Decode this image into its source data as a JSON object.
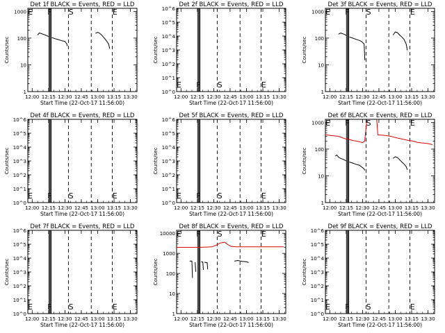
{
  "colors": {
    "events": "#000000",
    "lld": "#dd0000",
    "axis": "#000000"
  },
  "xticks": [
    "12:00",
    "12:15",
    "12:30",
    "12:45",
    "13:00",
    "13:15",
    "13:30"
  ],
  "xlabel": "Start Time (22-Oct-17 11:56:00)",
  "ylabel": "Counts/sec",
  "chart_data": [
    {
      "type": "line",
      "title": "Det 1f BLACK = Events, RED = LLD",
      "x_range_minutes": [
        0,
        100
      ],
      "y_scale": "log",
      "ytick_values": [
        1,
        10,
        100,
        1000
      ],
      "ytick_labels": [
        "1",
        "10",
        "100",
        "1000"
      ],
      "ylim": [
        1,
        1300
      ],
      "solid_lines_min": [
        19.3,
        20.2,
        21.0,
        21.4
      ],
      "dashed_lines_min": [
        37.2,
        58.1,
        77.4
      ],
      "markers": [
        {
          "label": "E",
          "x": 2.2
        },
        {
          "label": "F",
          "x": 20.0
        },
        {
          "label": "S",
          "x": 39.6
        },
        {
          "label": "E",
          "x": 79.8
        }
      ],
      "series": [
        {
          "color": "black",
          "points": [
            [
              9.0,
              130
            ],
            [
              10.5,
              155
            ],
            [
              12.0,
              150
            ],
            [
              14.0,
              140
            ],
            [
              16.0,
              130
            ],
            [
              18.0,
              120
            ],
            [
              19.0,
              115
            ]
          ]
        },
        {
          "color": "black",
          "points": [
            [
              22.0,
              105
            ],
            [
              25.0,
              95
            ],
            [
              28.0,
              88
            ],
            [
              31.0,
              80
            ],
            [
              34.0,
              75
            ],
            [
              35.8,
              60
            ],
            [
              36.1,
              50
            ]
          ]
        },
        {
          "color": "black",
          "points": [
            [
              62.0,
              150
            ],
            [
              64.0,
              165
            ],
            [
              66.0,
              150
            ],
            [
              68.0,
              125
            ],
            [
              70.0,
              100
            ],
            [
              72.0,
              80
            ],
            [
              74.0,
              60
            ],
            [
              75.0,
              40
            ]
          ]
        }
      ]
    },
    {
      "type": "line",
      "title": "Det 2f BLACK = Events, RED = LLD",
      "x_range_minutes": [
        0,
        100
      ],
      "y_scale": "log",
      "ytick_values": [
        1,
        10,
        100,
        1000,
        10000,
        100000,
        1000000
      ],
      "ytick_labels": [
        "10^0",
        "10^1",
        "10^2",
        "10^3",
        "10^4",
        "10^5",
        "10^6"
      ],
      "ylim": [
        1,
        1000000
      ],
      "solid_lines_min": [
        19.3,
        20.2,
        21.0,
        21.4
      ],
      "dashed_lines_min": [
        37.2,
        58.1,
        77.4
      ],
      "markers": [
        {
          "label": "E",
          "x": 2.2
        },
        {
          "label": "F",
          "x": 20.0
        },
        {
          "label": "S",
          "x": 39.6
        },
        {
          "label": "E",
          "x": 79.8
        }
      ],
      "series": []
    },
    {
      "type": "line",
      "title": "Det 3f BLACK = Events, RED = LLD",
      "x_range_minutes": [
        0,
        100
      ],
      "y_scale": "log",
      "ytick_values": [
        1,
        10,
        100,
        1000
      ],
      "ytick_labels": [
        "1",
        "10",
        "100",
        "1000"
      ],
      "ylim": [
        1,
        1300
      ],
      "solid_lines_min": [
        19.3,
        20.2,
        21.0,
        21.4
      ],
      "dashed_lines_min": [
        37.2,
        58.1,
        77.4
      ],
      "markers": [
        {
          "label": "E",
          "x": 2.2
        },
        {
          "label": "F",
          "x": 20.0
        },
        {
          "label": "S",
          "x": 39.6
        },
        {
          "label": "E",
          "x": 79.8
        }
      ],
      "series": [
        {
          "color": "black",
          "points": [
            [
              12.0,
              140
            ],
            [
              14.0,
              155
            ],
            [
              16.0,
              145
            ],
            [
              18.0,
              135
            ],
            [
              19.0,
              125
            ]
          ]
        },
        {
          "color": "black",
          "points": [
            [
              22.0,
              110
            ],
            [
              25.0,
              100
            ],
            [
              28.0,
              90
            ],
            [
              31.0,
              82
            ],
            [
              33.0,
              75
            ],
            [
              35.5,
              60
            ],
            [
              36.1,
              15
            ]
          ]
        },
        {
          "color": "black",
          "points": [
            [
              62.0,
              130
            ],
            [
              64.0,
              170
            ],
            [
              66.0,
              160
            ],
            [
              68.0,
              130
            ],
            [
              70.0,
              110
            ],
            [
              72.0,
              90
            ],
            [
              74.0,
              60
            ],
            [
              75.0,
              35
            ]
          ]
        }
      ]
    },
    {
      "type": "line",
      "title": "Det 4f BLACK = Events, RED = LLD",
      "x_range_minutes": [
        0,
        100
      ],
      "y_scale": "log",
      "ytick_values": [
        1,
        10,
        100,
        1000,
        10000,
        100000,
        1000000
      ],
      "ytick_labels": [
        "10^0",
        "10^1",
        "10^2",
        "10^3",
        "10^4",
        "10^5",
        "10^6"
      ],
      "ylim": [
        1,
        1000000
      ],
      "solid_lines_min": [
        19.3,
        20.2,
        21.0,
        21.4
      ],
      "dashed_lines_min": [
        37.2,
        58.1,
        77.4
      ],
      "markers": [
        {
          "label": "E",
          "x": 2.2
        },
        {
          "label": "F",
          "x": 20.0
        },
        {
          "label": "S",
          "x": 39.6
        },
        {
          "label": "E",
          "x": 79.8
        }
      ],
      "series": []
    },
    {
      "type": "line",
      "title": "Det 5f BLACK = Events, RED = LLD",
      "x_range_minutes": [
        0,
        100
      ],
      "y_scale": "log",
      "ytick_values": [
        1,
        10,
        100,
        1000,
        10000,
        100000,
        1000000
      ],
      "ytick_labels": [
        "10^0",
        "10^1",
        "10^2",
        "10^3",
        "10^4",
        "10^5",
        "10^6"
      ],
      "ylim": [
        1,
        1000000
      ],
      "solid_lines_min": [
        19.3,
        20.2,
        21.0,
        21.4
      ],
      "dashed_lines_min": [
        37.2,
        58.1,
        77.4
      ],
      "markers": [
        {
          "label": "E",
          "x": 2.2
        },
        {
          "label": "F",
          "x": 20.0
        },
        {
          "label": "S",
          "x": 39.6
        },
        {
          "label": "E",
          "x": 79.8
        }
      ],
      "series": []
    },
    {
      "type": "line",
      "title": "Det 6f BLACK = Events, RED = LLD",
      "x_range_minutes": [
        0,
        100
      ],
      "y_scale": "log",
      "ytick_values": [
        1,
        10,
        100,
        1000
      ],
      "ytick_labels": [
        "1",
        "10",
        "100",
        "1000"
      ],
      "ylim": [
        1,
        1300
      ],
      "solid_lines_min": [
        19.3,
        20.2,
        21.0,
        21.4
      ],
      "dashed_lines_min": [
        37.2,
        58.1,
        77.4
      ],
      "markers": [
        {
          "label": "E",
          "x": 2.2
        },
        {
          "label": "F",
          "x": 20.0
        },
        {
          "label": "S",
          "x": 39.6
        },
        {
          "label": "E",
          "x": 79.8
        }
      ],
      "series": [
        {
          "color": "red",
          "points": [
            [
              0.0,
              340
            ],
            [
              6.0,
              320
            ],
            [
              12.0,
              300
            ],
            [
              16.0,
              260
            ],
            [
              19.0,
              240
            ],
            [
              21.5,
              230
            ],
            [
              25.0,
              210
            ],
            [
              28.0,
              200
            ],
            [
              31.0,
              190
            ],
            [
              34.0,
              175
            ],
            [
              36.0,
              200
            ],
            [
              38.0,
              1300
            ]
          ]
        },
        {
          "color": "red",
          "points": [
            [
              47.0,
              1300
            ],
            [
              48.0,
              340
            ],
            [
              52.0,
              330
            ],
            [
              56.0,
              320
            ],
            [
              60.0,
              300
            ],
            [
              64.0,
              270
            ],
            [
              68.0,
              250
            ],
            [
              72.0,
              230
            ],
            [
              76.0,
              210
            ],
            [
              80.0,
              200
            ],
            [
              84.0,
              180
            ],
            [
              88.0,
              170
            ],
            [
              92.0,
              165
            ],
            [
              96.0,
              155
            ],
            [
              98.0,
              145
            ]
          ]
        },
        {
          "color": "black",
          "points": [
            [
              9.0,
              55
            ],
            [
              10.5,
              60
            ],
            [
              12.0,
              50
            ],
            [
              14.0,
              45
            ],
            [
              16.0,
              42
            ],
            [
              18.0,
              38
            ],
            [
              19.0,
              36
            ]
          ]
        },
        {
          "color": "black",
          "points": [
            [
              22.0,
              33
            ],
            [
              25.0,
              30
            ],
            [
              28.0,
              27
            ],
            [
              31.0,
              25
            ],
            [
              33.0,
              22
            ],
            [
              35.5,
              18
            ],
            [
              36.1,
              16
            ]
          ]
        },
        {
          "color": "black",
          "points": [
            [
              62.0,
              45
            ],
            [
              64.0,
              52
            ],
            [
              66.0,
              48
            ],
            [
              68.0,
              40
            ],
            [
              70.0,
              33
            ],
            [
              72.0,
              28
            ],
            [
              74.0,
              22
            ],
            [
              75.0,
              17
            ]
          ]
        }
      ]
    },
    {
      "type": "line",
      "title": "Det 7f BLACK = Events, RED = LLD",
      "x_range_minutes": [
        0,
        100
      ],
      "y_scale": "log",
      "ytick_values": [
        1,
        10,
        100,
        1000,
        10000,
        100000,
        1000000
      ],
      "ytick_labels": [
        "10^0",
        "10^1",
        "10^2",
        "10^3",
        "10^4",
        "10^5",
        "10^6"
      ],
      "ylim": [
        1,
        1000000
      ],
      "solid_lines_min": [
        19.3,
        20.2,
        21.0,
        21.4
      ],
      "dashed_lines_min": [
        37.2,
        58.1,
        77.4
      ],
      "markers": [
        {
          "label": "E",
          "x": 2.2
        },
        {
          "label": "F",
          "x": 20.0
        },
        {
          "label": "S",
          "x": 39.6
        },
        {
          "label": "E",
          "x": 79.8
        }
      ],
      "series": []
    },
    {
      "type": "line",
      "title": "Det 8f BLACK = Events, RED = LLD",
      "x_range_minutes": [
        0,
        100
      ],
      "y_scale": "log",
      "ytick_values": [
        1,
        10,
        100,
        1000,
        10000
      ],
      "ytick_labels": [
        "1",
        "10",
        "100",
        "1000",
        "10000"
      ],
      "ylim": [
        1,
        14000
      ],
      "solid_lines_min": [
        19.3,
        20.2,
        21.0,
        21.4
      ],
      "dashed_lines_min": [
        37.2,
        58.1,
        77.4
      ],
      "markers": [
        {
          "label": "E",
          "x": 2.2
        },
        {
          "label": "F",
          "x": 20.0
        },
        {
          "label": "S",
          "x": 39.6
        },
        {
          "label": "E",
          "x": 79.8
        }
      ],
      "series": [
        {
          "color": "red",
          "points": [
            [
              0.0,
              2000
            ],
            [
              10.0,
              2000
            ],
            [
              20.0,
              2000
            ],
            [
              28.0,
              2050
            ],
            [
              32.0,
              2100
            ],
            [
              36.0,
              2500
            ],
            [
              40.0,
              3300
            ],
            [
              44.0,
              3600
            ],
            [
              47.0,
              2700
            ],
            [
              50.0,
              2200
            ],
            [
              55.0,
              2100
            ],
            [
              65.0,
              2100
            ],
            [
              75.0,
              2100
            ],
            [
              85.0,
              2100
            ],
            [
              98.0,
              2100
            ]
          ]
        },
        {
          "color": "black",
          "points": [
            [
              12.0,
              400
            ],
            [
              13.0,
              420
            ],
            [
              14.0,
              410
            ],
            [
              14.5,
              60
            ]
          ]
        },
        {
          "color": "black",
          "points": [
            [
              17.0,
              360
            ],
            [
              17.5,
              120
            ]
          ]
        },
        {
          "color": "black",
          "points": [
            [
              22.5,
              380
            ],
            [
              24.0,
              370
            ],
            [
              24.5,
              150
            ]
          ]
        },
        {
          "color": "black",
          "points": [
            [
              25.5,
              360
            ],
            [
              27.0,
              350
            ],
            [
              28.0,
              340
            ],
            [
              28.5,
              160
            ]
          ]
        },
        {
          "color": "black",
          "points": [
            [
              53.0,
              410
            ],
            [
              56.0,
              440
            ],
            [
              60.0,
              400
            ],
            [
              64.0,
              380
            ],
            [
              66.0,
              350
            ]
          ]
        }
      ]
    },
    {
      "type": "line",
      "title": "Det 9f BLACK = Events, RED = LLD",
      "x_range_minutes": [
        0,
        100
      ],
      "y_scale": "log",
      "ytick_values": [
        1,
        10,
        100,
        1000,
        10000,
        100000,
        1000000
      ],
      "ytick_labels": [
        "10^0",
        "10^1",
        "10^2",
        "10^3",
        "10^4",
        "10^5",
        "10^6"
      ],
      "ylim": [
        1,
        1000000
      ],
      "solid_lines_min": [
        19.3,
        20.2,
        21.0,
        21.4
      ],
      "dashed_lines_min": [
        37.2,
        58.1,
        77.4
      ],
      "markers": [
        {
          "label": "E",
          "x": 2.2
        },
        {
          "label": "F",
          "x": 20.0
        },
        {
          "label": "S",
          "x": 39.6
        },
        {
          "label": "E",
          "x": 79.8
        }
      ],
      "series": []
    }
  ]
}
